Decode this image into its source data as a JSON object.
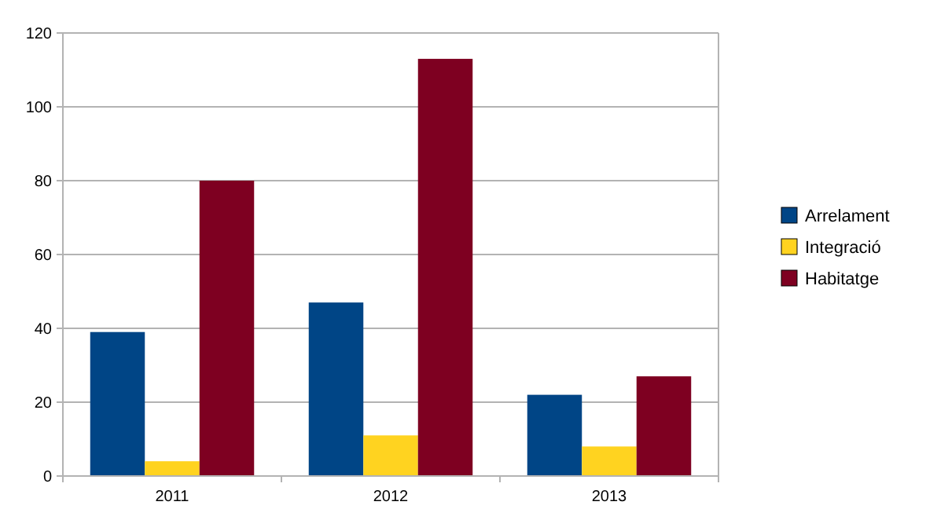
{
  "chart_data": {
    "type": "bar",
    "categories": [
      "2011",
      "2012",
      "2013"
    ],
    "series": [
      {
        "name": "Arrelament",
        "color": "#004586",
        "values": [
          39,
          47,
          22
        ]
      },
      {
        "name": "Integració",
        "color": "#ffd320",
        "values": [
          4,
          11,
          8
        ]
      },
      {
        "name": "Habitatge",
        "color": "#7e0021",
        "values": [
          80,
          113,
          27
        ]
      }
    ],
    "ylim": [
      0,
      120
    ],
    "yticks": [
      0,
      20,
      40,
      60,
      80,
      100,
      120
    ],
    "grid": "y",
    "legend": "right"
  }
}
